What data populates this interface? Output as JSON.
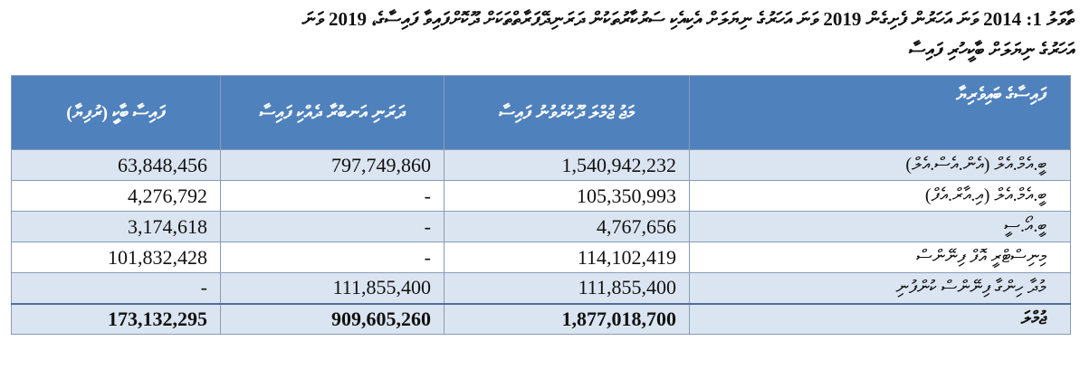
{
  "caption": {
    "line1": "ތާވަލު 1: 2014 ވަނަ އަހަރުން ފެށިގެން 2019 ވަނަ އަހަރުގެ ނިޔަލަށް އެކިއެކި ސަރުކާރުތަކުން ދަރަނިދޭފަރާތްތަކަށް ދޫކޮށްފައިވާ ފައިސާގެ، 2019 ވަނަ",
    "line2": "އަހަރުގެ ނިޔަލަށް ބާކީހުރި ފައިސާ"
  },
  "table": {
    "headers": {
      "source": "ފައިސާގެ ބައިވެރިޔާ",
      "disbursed": "މަޖު ޖުމްލަ ދޫކުރެވުނު ފައިސާ",
      "repaid": "ދަރަނި އަނބުރާ ދެއްކި ފައިސާ",
      "outstanding": "ފައިސާ ބާކީ (ރުފިޔާ)"
    },
    "rows": [
      {
        "label": "ބީ.އެމް.އެލް (އެން.އެސް.އެލް)",
        "disbursed": "1,540,942,232",
        "repaid": "797,749,860",
        "outstanding": "63,848,456"
      },
      {
        "label": "ބީ.އެމް.އެލް (އި.އާރް.އެފް)",
        "disbursed": "105,350,993",
        "repaid": "-",
        "outstanding": "4,276,792"
      },
      {
        "label": "ބީ.އޯ.ސީ",
        "disbursed": "4,767,656",
        "repaid": "-",
        "outstanding": "3,174,618"
      },
      {
        "label": "މިނިސްޓްރީ އޮފް ފިނޭންސް",
        "disbursed": "114,102,419",
        "repaid": "-",
        "outstanding": "101,832,428"
      },
      {
        "label": "މުދާ ހިންގާ ފިނޭންސް ކުންފުނި",
        "disbursed": "111,855,400",
        "repaid": "111,855,400",
        "outstanding": "-"
      }
    ],
    "total": {
      "label": "ޖުމްލަ",
      "disbursed": "1,877,018,700",
      "repaid": "909,605,260",
      "outstanding": "173,132,295"
    }
  },
  "colors": {
    "header_bg": "#4f81bd",
    "row_shade": "#dbe5f1",
    "border": "#8a9bb8"
  }
}
